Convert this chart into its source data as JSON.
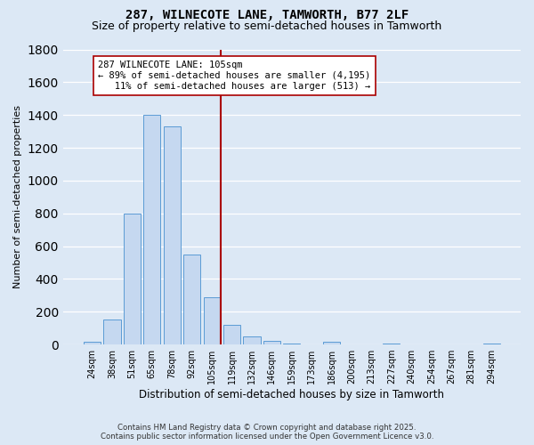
{
  "title1": "287, WILNECOTE LANE, TAMWORTH, B77 2LF",
  "title2": "Size of property relative to semi-detached houses in Tamworth",
  "xlabel": "Distribution of semi-detached houses by size in Tamworth",
  "ylabel": "Number of semi-detached properties",
  "footnote1": "Contains HM Land Registry data © Crown copyright and database right 2025.",
  "footnote2": "Contains public sector information licensed under the Open Government Licence v3.0.",
  "categories": [
    "24sqm",
    "38sqm",
    "51sqm",
    "65sqm",
    "78sqm",
    "92sqm",
    "105sqm",
    "119sqm",
    "132sqm",
    "146sqm",
    "159sqm",
    "173sqm",
    "186sqm",
    "200sqm",
    "213sqm",
    "227sqm",
    "240sqm",
    "254sqm",
    "267sqm",
    "281sqm",
    "294sqm"
  ],
  "values": [
    15,
    150,
    800,
    1400,
    1330,
    550,
    290,
    120,
    50,
    20,
    5,
    0,
    15,
    0,
    0,
    5,
    0,
    0,
    0,
    0,
    5
  ],
  "bar_color": "#c5d8f0",
  "bar_edge_color": "#5b9bd5",
  "vline_idx": 6,
  "vline_color": "#aa0000",
  "annotation_text": "287 WILNECOTE LANE: 105sqm\n← 89% of semi-detached houses are smaller (4,195)\n   11% of semi-detached houses are larger (513) →",
  "annotation_box_color": "#ffffff",
  "annotation_box_edge": "#aa0000",
  "ylim": [
    0,
    1800
  ],
  "yticks": [
    0,
    200,
    400,
    600,
    800,
    1000,
    1200,
    1400,
    1600,
    1800
  ],
  "bg_color": "#dce8f5",
  "grid_color": "#ffffff",
  "title1_fontsize": 10,
  "title2_fontsize": 9
}
